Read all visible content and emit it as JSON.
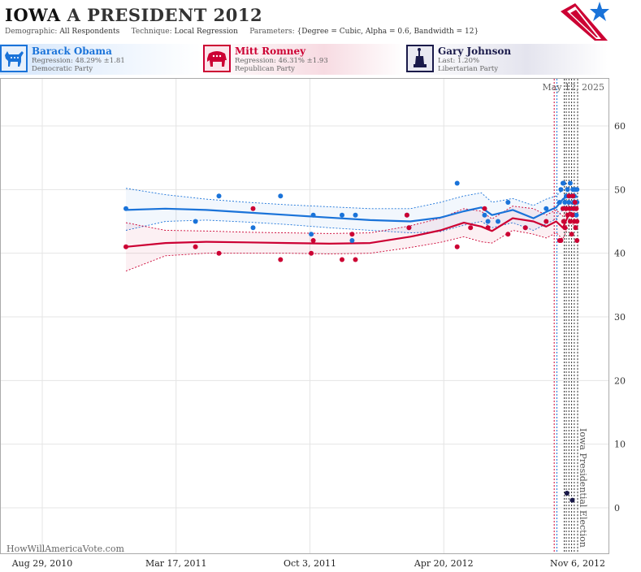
{
  "header": {
    "state": "IOWA",
    "race": "A PRESIDENT 2012",
    "demographic_label": "Demographic:",
    "demographic_value": "All Respondents",
    "technique_label": "Technique:",
    "technique_value": "Local Regression",
    "parameters_label": "Parameters:",
    "parameters_value": "{Degree = Cubic, Alpha = 0.6, Bandwidth = 12}"
  },
  "candidates": [
    {
      "name": "Barack Obama",
      "stat": "Regression: 48.29% ±1.81",
      "party": "Democratic Party",
      "color": "#1a73d9",
      "icon": "donkey-icon"
    },
    {
      "name": "Mitt Romney",
      "stat": "Regression: 46.31% ±1.93",
      "party": "Republican Party",
      "color": "#cc0033",
      "icon": "elephant-icon"
    },
    {
      "name": "Gary Johnson",
      "stat": "Last: 1.20%",
      "party": "Libertarian Party",
      "color": "#1a1a4a",
      "icon": "liberty-statue-icon"
    }
  ],
  "chart_data": {
    "type": "scatter",
    "date_annotation": "May 12, 2025",
    "event_label": "Iowa Presidential Election",
    "watermark": "HowWillAmericaVote.com",
    "x_tick_labels": [
      "Aug 29, 2010",
      "Mar 17, 2011",
      "Oct 3, 2011",
      "Apr 20, 2012",
      "Nov 6, 2012"
    ],
    "y_ticks": [
      0,
      10,
      20,
      30,
      40,
      50,
      60
    ],
    "ylim": [
      -5,
      70
    ],
    "grid": true,
    "x_start": "2010-08-29",
    "x_end": "2012-11-06",
    "x_max": "2012-11-30",
    "vertical_lines": [
      {
        "date": "2012-10-02",
        "color": "#cc0033"
      },
      {
        "date": "2012-10-06",
        "color": "#1a73d9"
      },
      {
        "date": "2012-10-17",
        "color": "#333333"
      },
      {
        "date": "2012-10-20",
        "color": "#333333"
      },
      {
        "date": "2012-10-24",
        "color": "#333333"
      },
      {
        "date": "2012-10-28",
        "color": "#333333"
      },
      {
        "date": "2012-11-01",
        "color": "#333333"
      },
      {
        "date": "2012-11-06",
        "color": "#333333"
      }
    ],
    "series": [
      {
        "name": "Barack Obama",
        "color": "#1a73d9",
        "trend": [
          [
            "2011-01-01",
            46.8
          ],
          [
            "2011-03-01",
            47.0
          ],
          [
            "2011-05-01",
            46.8
          ],
          [
            "2011-07-01",
            46.4
          ],
          [
            "2011-09-01",
            46.0
          ],
          [
            "2011-11-01",
            45.6
          ],
          [
            "2012-01-01",
            45.2
          ],
          [
            "2012-03-01",
            45.0
          ],
          [
            "2012-04-15",
            45.6
          ],
          [
            "2012-05-20",
            46.6
          ],
          [
            "2012-06-15",
            47.2
          ],
          [
            "2012-07-01",
            46.0
          ],
          [
            "2012-08-01",
            46.8
          ],
          [
            "2012-09-01",
            45.5
          ],
          [
            "2012-09-20",
            46.5
          ],
          [
            "2012-10-05",
            47.2
          ],
          [
            "2012-10-15",
            48.5
          ],
          [
            "2012-10-25",
            49.2
          ],
          [
            "2012-11-06",
            48.8
          ]
        ],
        "band_upper": [
          [
            "2011-01-01",
            50.2
          ],
          [
            "2011-03-01",
            49.2
          ],
          [
            "2011-05-01",
            48.5
          ],
          [
            "2011-07-01",
            48.0
          ],
          [
            "2011-09-01",
            47.6
          ],
          [
            "2011-11-01",
            47.3
          ],
          [
            "2012-01-01",
            47.0
          ],
          [
            "2012-03-01",
            47.0
          ],
          [
            "2012-04-15",
            48.0
          ],
          [
            "2012-05-20",
            49.0
          ],
          [
            "2012-06-15",
            49.5
          ],
          [
            "2012-07-01",
            48.0
          ],
          [
            "2012-08-01",
            48.6
          ],
          [
            "2012-09-01",
            47.5
          ],
          [
            "2012-09-20",
            48.5
          ],
          [
            "2012-10-05",
            49.0
          ],
          [
            "2012-10-15",
            50.0
          ],
          [
            "2012-10-25",
            50.4
          ],
          [
            "2012-11-06",
            50.2
          ]
        ],
        "band_lower": [
          [
            "2011-01-01",
            43.6
          ],
          [
            "2011-03-01",
            45.0
          ],
          [
            "2011-05-01",
            45.2
          ],
          [
            "2011-07-01",
            44.9
          ],
          [
            "2011-09-01",
            44.5
          ],
          [
            "2011-11-01",
            44.0
          ],
          [
            "2012-01-01",
            43.6
          ],
          [
            "2012-03-01",
            43.2
          ],
          [
            "2012-04-15",
            43.4
          ],
          [
            "2012-05-20",
            44.4
          ],
          [
            "2012-06-15",
            45.0
          ],
          [
            "2012-07-01",
            44.0
          ],
          [
            "2012-08-01",
            44.8
          ],
          [
            "2012-09-01",
            43.6
          ],
          [
            "2012-09-20",
            44.6
          ],
          [
            "2012-10-05",
            45.4
          ],
          [
            "2012-10-15",
            46.9
          ],
          [
            "2012-10-25",
            47.8
          ],
          [
            "2012-11-06",
            47.4
          ]
        ],
        "points": [
          [
            "2011-01-01",
            47
          ],
          [
            "2011-04-15",
            45
          ],
          [
            "2011-05-20",
            49
          ],
          [
            "2011-07-10",
            44
          ],
          [
            "2011-08-20",
            49
          ],
          [
            "2011-10-08",
            46
          ],
          [
            "2011-10-05",
            43
          ],
          [
            "2011-11-20",
            46
          ],
          [
            "2011-12-05",
            42
          ],
          [
            "2011-12-10",
            46
          ],
          [
            "2012-02-25",
            46
          ],
          [
            "2012-02-28",
            44
          ],
          [
            "2012-05-10",
            51
          ],
          [
            "2012-06-20",
            46
          ],
          [
            "2012-06-25",
            45
          ],
          [
            "2012-07-10",
            45
          ],
          [
            "2012-07-25",
            48
          ],
          [
            "2012-08-20",
            44
          ],
          [
            "2012-09-20",
            47
          ],
          [
            "2012-10-10",
            48
          ],
          [
            "2012-10-12",
            50
          ],
          [
            "2012-10-15",
            51
          ],
          [
            "2012-10-16",
            51
          ],
          [
            "2012-10-18",
            48
          ],
          [
            "2012-10-20",
            49
          ],
          [
            "2012-10-22",
            50
          ],
          [
            "2012-10-24",
            48
          ],
          [
            "2012-10-25",
            49
          ],
          [
            "2012-10-26",
            51
          ],
          [
            "2012-10-28",
            47
          ],
          [
            "2012-10-29",
            49
          ],
          [
            "2012-10-30",
            50
          ],
          [
            "2012-10-31",
            48
          ],
          [
            "2012-11-01",
            49
          ],
          [
            "2012-11-02",
            50
          ],
          [
            "2012-11-03",
            47
          ],
          [
            "2012-11-04",
            46
          ],
          [
            "2012-11-05",
            50
          ],
          [
            "2012-11-05",
            48
          ]
        ]
      },
      {
        "name": "Mitt Romney",
        "color": "#cc0033",
        "trend": [
          [
            "2011-01-01",
            41.0
          ],
          [
            "2011-03-01",
            41.6
          ],
          [
            "2011-05-01",
            41.8
          ],
          [
            "2011-07-01",
            41.7
          ],
          [
            "2011-09-01",
            41.6
          ],
          [
            "2011-11-01",
            41.5
          ],
          [
            "2012-01-01",
            41.6
          ],
          [
            "2012-03-01",
            42.6
          ],
          [
            "2012-04-15",
            43.6
          ],
          [
            "2012-05-20",
            44.8
          ],
          [
            "2012-06-15",
            44.2
          ],
          [
            "2012-07-01",
            43.5
          ],
          [
            "2012-08-01",
            45.5
          ],
          [
            "2012-09-01",
            45.0
          ],
          [
            "2012-09-20",
            44.2
          ],
          [
            "2012-10-05",
            45.0
          ],
          [
            "2012-10-15",
            44.0
          ],
          [
            "2012-10-25",
            46.4
          ],
          [
            "2012-11-06",
            46.0
          ]
        ],
        "band_upper": [
          [
            "2011-01-01",
            44.8
          ],
          [
            "2011-03-01",
            43.6
          ],
          [
            "2011-05-01",
            43.5
          ],
          [
            "2011-07-01",
            43.3
          ],
          [
            "2011-09-01",
            43.2
          ],
          [
            "2011-11-01",
            43.1
          ],
          [
            "2012-01-01",
            43.2
          ],
          [
            "2012-03-01",
            44.3
          ],
          [
            "2012-04-15",
            45.5
          ],
          [
            "2012-05-20",
            47.0
          ],
          [
            "2012-06-15",
            46.6
          ],
          [
            "2012-07-01",
            45.4
          ],
          [
            "2012-08-01",
            47.4
          ],
          [
            "2012-09-01",
            47.0
          ],
          [
            "2012-09-20",
            46.0
          ],
          [
            "2012-10-05",
            46.8
          ],
          [
            "2012-10-15",
            45.8
          ],
          [
            "2012-10-25",
            48.0
          ],
          [
            "2012-11-06",
            47.8
          ]
        ],
        "band_lower": [
          [
            "2011-01-01",
            37.2
          ],
          [
            "2011-03-01",
            39.6
          ],
          [
            "2011-05-01",
            40.0
          ],
          [
            "2011-07-01",
            40.0
          ],
          [
            "2011-09-01",
            40.0
          ],
          [
            "2011-11-01",
            39.9
          ],
          [
            "2012-01-01",
            40.0
          ],
          [
            "2012-03-01",
            40.9
          ],
          [
            "2012-04-15",
            41.7
          ],
          [
            "2012-05-20",
            42.6
          ],
          [
            "2012-06-15",
            41.8
          ],
          [
            "2012-07-01",
            41.6
          ],
          [
            "2012-08-01",
            43.6
          ],
          [
            "2012-09-01",
            43.0
          ],
          [
            "2012-09-20",
            42.4
          ],
          [
            "2012-10-05",
            43.2
          ],
          [
            "2012-10-15",
            42.2
          ],
          [
            "2012-10-25",
            44.8
          ],
          [
            "2012-11-06",
            44.2
          ]
        ],
        "points": [
          [
            "2011-01-01",
            41
          ],
          [
            "2011-04-15",
            41
          ],
          [
            "2011-05-20",
            40
          ],
          [
            "2011-07-10",
            47
          ],
          [
            "2011-08-20",
            39
          ],
          [
            "2011-10-05",
            40
          ],
          [
            "2011-10-08",
            42
          ],
          [
            "2011-11-20",
            39
          ],
          [
            "2011-12-05",
            43
          ],
          [
            "2011-12-10",
            39
          ],
          [
            "2012-02-25",
            46
          ],
          [
            "2012-02-28",
            44
          ],
          [
            "2012-05-10",
            41
          ],
          [
            "2012-05-30",
            44
          ],
          [
            "2012-06-20",
            47
          ],
          [
            "2012-06-25",
            44
          ],
          [
            "2012-07-25",
            43
          ],
          [
            "2012-08-20",
            44
          ],
          [
            "2012-09-20",
            45
          ],
          [
            "2012-10-10",
            42
          ],
          [
            "2012-10-12",
            42
          ],
          [
            "2012-10-15",
            47
          ],
          [
            "2012-10-16",
            45
          ],
          [
            "2012-10-18",
            44
          ],
          [
            "2012-10-20",
            47
          ],
          [
            "2012-10-22",
            46
          ],
          [
            "2012-10-24",
            49
          ],
          [
            "2012-10-25",
            47
          ],
          [
            "2012-10-26",
            45
          ],
          [
            "2012-10-28",
            43
          ],
          [
            "2012-10-29",
            46
          ],
          [
            "2012-10-30",
            49
          ],
          [
            "2012-10-31",
            47
          ],
          [
            "2012-11-01",
            45
          ],
          [
            "2012-11-02",
            48
          ],
          [
            "2012-11-03",
            44
          ],
          [
            "2012-11-04",
            47
          ],
          [
            "2012-11-05",
            42
          ],
          [
            "2012-11-05",
            45
          ]
        ]
      },
      {
        "name": "Gary Johnson",
        "color": "#1a1a4a",
        "trend": [],
        "band_upper": [],
        "band_lower": [],
        "points": [
          [
            "2012-10-21",
            2.3
          ],
          [
            "2012-10-29",
            1.2
          ]
        ]
      }
    ]
  }
}
